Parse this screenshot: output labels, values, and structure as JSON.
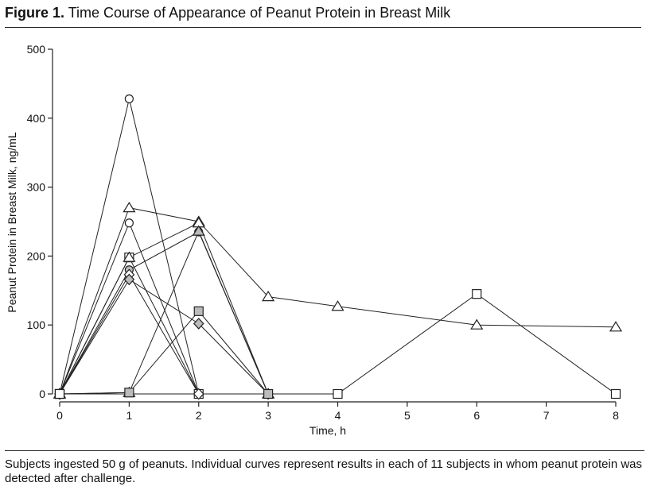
{
  "figure": {
    "label": "Figure 1.",
    "title": "Time Course of Appearance of Peanut Protein in Breast Milk",
    "caption": "Subjects ingested 50 g of peanuts. Individual curves represent results in each of 11 subjects in whom peanut protein was detected after challenge."
  },
  "chart_data": {
    "type": "line",
    "xlabel": "Time, h",
    "ylabel": "Peanut Protein in Breast Milk, ng/mL",
    "xlim": [
      0,
      8
    ],
    "ylim": [
      0,
      500
    ],
    "xticks": [
      0,
      1,
      2,
      3,
      4,
      5,
      6,
      7,
      8
    ],
    "yticks": [
      0,
      100,
      200,
      300,
      400,
      500
    ],
    "grid": false,
    "series": [
      {
        "marker": "circle",
        "fill": "#ffffff",
        "x": [
          0,
          1,
          2
        ],
        "y": [
          0,
          428,
          0
        ]
      },
      {
        "marker": "triangle",
        "fill": "#ffffff",
        "x": [
          0,
          1,
          2,
          3,
          4,
          6,
          8
        ],
        "y": [
          0,
          270,
          250,
          141,
          127,
          100,
          97
        ]
      },
      {
        "marker": "circle",
        "fill": "#ffffff",
        "x": [
          0,
          1,
          2
        ],
        "y": [
          0,
          248,
          0
        ]
      },
      {
        "marker": "square",
        "fill": "#ffffff",
        "x": [
          0,
          1,
          2
        ],
        "y": [
          0,
          198,
          0
        ]
      },
      {
        "marker": "triangle",
        "fill": "#ffffff",
        "x": [
          0,
          1,
          2,
          3
        ],
        "y": [
          0,
          198,
          248,
          0
        ]
      },
      {
        "marker": "circle",
        "fill": "#bbbbbb",
        "x": [
          0,
          1,
          2,
          3
        ],
        "y": [
          0,
          180,
          235,
          0
        ]
      },
      {
        "marker": "diamond",
        "fill": "#ffffff",
        "x": [
          0,
          1,
          2
        ],
        "y": [
          0,
          173,
          0
        ]
      },
      {
        "marker": "diamond",
        "fill": "#bbbbbb",
        "x": [
          0,
          1,
          2,
          3
        ],
        "y": [
          0,
          166,
          102,
          0
        ]
      },
      {
        "marker": "triangle",
        "fill": "#bbbbbb",
        "x": [
          0,
          1,
          2,
          3
        ],
        "y": [
          0,
          2,
          236,
          0
        ]
      },
      {
        "marker": "square",
        "fill": "#bbbbbb",
        "x": [
          0,
          1,
          2,
          3
        ],
        "y": [
          0,
          2,
          120,
          0
        ]
      },
      {
        "marker": "square",
        "fill": "#ffffff",
        "x": [
          0,
          4,
          6,
          8
        ],
        "y": [
          0,
          0,
          145,
          0
        ]
      }
    ]
  }
}
